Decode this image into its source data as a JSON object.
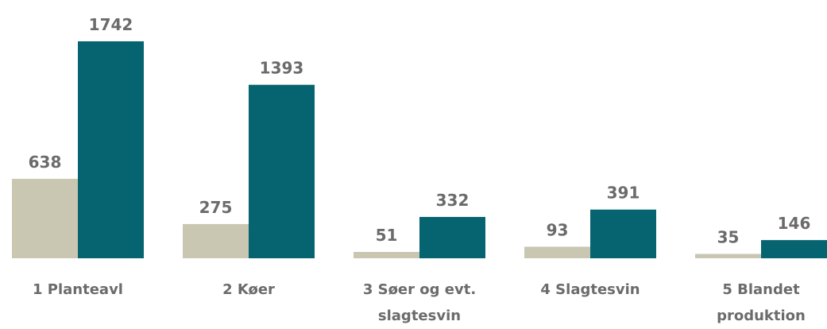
{
  "chart_data": {
    "type": "bar",
    "categories": [
      "1 Planteavl",
      "2 Køer",
      "3 Søer og evt. slagtesvin",
      "4 Slagtesvin",
      "5 Blandet produktion"
    ],
    "series": [
      {
        "color": "#c9c7b2",
        "values": [
          638,
          275,
          51,
          93,
          35
        ]
      },
      {
        "color": "#05646f",
        "values": [
          1742,
          1393,
          332,
          391,
          146
        ]
      }
    ]
  }
}
